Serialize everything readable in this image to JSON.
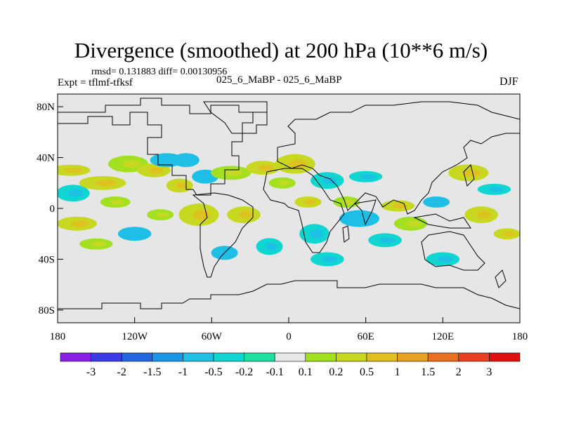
{
  "chart_data": {
    "type": "heatmap",
    "title": "Divergence (smoothed) at 200 hPa (10**6 m/s)",
    "stats_text": "rmsd= 0.131883 diff= 0.00130956",
    "experiment_label": "Expt = tflmf-tfksf",
    "case_label": "025_6_MaBP - 025_6_MaBP",
    "season": "DJF",
    "x_axis": {
      "range": [
        -180,
        180
      ],
      "ticks": [
        {
          "value": -180,
          "label": "180"
        },
        {
          "value": -120,
          "label": "120W"
        },
        {
          "value": -60,
          "label": "60W"
        },
        {
          "value": 0,
          "label": "0"
        },
        {
          "value": 60,
          "label": "60E"
        },
        {
          "value": 120,
          "label": "120E"
        },
        {
          "value": 180,
          "label": "180"
        }
      ]
    },
    "y_axis": {
      "range": [
        -90,
        90
      ],
      "ticks": [
        {
          "value": 80,
          "label": "80N"
        },
        {
          "value": 40,
          "label": "40N"
        },
        {
          "value": 0,
          "label": "0"
        },
        {
          "value": -40,
          "label": "40S"
        },
        {
          "value": -80,
          "label": "80S"
        }
      ]
    },
    "colorbar": {
      "levels": [
        "-3",
        "-2",
        "-1.5",
        "-1",
        "-0.5",
        "-0.2",
        "-0.1",
        "0.1",
        "0.2",
        "0.5",
        "1",
        "1.5",
        "2",
        "3"
      ],
      "colors": [
        "#8a20e6",
        "#3c3ce6",
        "#2466e0",
        "#1a96e6",
        "#1ebee6",
        "#10d6d2",
        "#20e0a0",
        "#e8e8e8",
        "#a2e020",
        "#c8d820",
        "#e0c020",
        "#e8a020",
        "#e87020",
        "#e84020",
        "#e01010"
      ]
    },
    "field_patches": [
      {
        "lon": -170,
        "lat": 30,
        "rx": 12,
        "ry": 4,
        "level": 9
      },
      {
        "lon": -168,
        "lat": 12,
        "rx": 10,
        "ry": 6,
        "level": 5
      },
      {
        "lon": -165,
        "lat": -12,
        "rx": 12,
        "ry": 5,
        "level": 9
      },
      {
        "lon": -150,
        "lat": -28,
        "rx": 10,
        "ry": 4,
        "level": 8
      },
      {
        "lon": -145,
        "lat": 20,
        "rx": 14,
        "ry": 5,
        "level": 9
      },
      {
        "lon": -135,
        "lat": 5,
        "rx": 9,
        "ry": 4,
        "level": 8
      },
      {
        "lon": -125,
        "lat": 35,
        "rx": 12,
        "ry": 6,
        "level": 8
      },
      {
        "lon": -120,
        "lat": -20,
        "rx": 10,
        "ry": 5,
        "level": 4
      },
      {
        "lon": -105,
        "lat": 30,
        "rx": 10,
        "ry": 5,
        "level": 9
      },
      {
        "lon": -100,
        "lat": -5,
        "rx": 8,
        "ry": 4,
        "level": 8
      },
      {
        "lon": -95,
        "lat": 38,
        "rx": 10,
        "ry": 5,
        "level": 4
      },
      {
        "lon": -85,
        "lat": 18,
        "rx": 8,
        "ry": 5,
        "level": 9
      },
      {
        "lon": -80,
        "lat": 38,
        "rx": 8,
        "ry": 5,
        "level": 4
      },
      {
        "lon": -70,
        "lat": -5,
        "rx": 12,
        "ry": 8,
        "level": 9
      },
      {
        "lon": -65,
        "lat": 25,
        "rx": 8,
        "ry": 5,
        "level": 4
      },
      {
        "lon": -50,
        "lat": -35,
        "rx": 8,
        "ry": 5,
        "level": 4
      },
      {
        "lon": -45,
        "lat": 28,
        "rx": 12,
        "ry": 5,
        "level": 8
      },
      {
        "lon": -35,
        "lat": -5,
        "rx": 10,
        "ry": 6,
        "level": 9
      },
      {
        "lon": -20,
        "lat": 32,
        "rx": 10,
        "ry": 5,
        "level": 9
      },
      {
        "lon": -15,
        "lat": -30,
        "rx": 8,
        "ry": 6,
        "level": 5
      },
      {
        "lon": -5,
        "lat": 20,
        "rx": 8,
        "ry": 4,
        "level": 8
      },
      {
        "lon": 5,
        "lat": 35,
        "rx": 12,
        "ry": 7,
        "level": 9
      },
      {
        "lon": 15,
        "lat": 5,
        "rx": 8,
        "ry": 4,
        "level": 9
      },
      {
        "lon": 20,
        "lat": -20,
        "rx": 9,
        "ry": 7,
        "level": 5
      },
      {
        "lon": 30,
        "lat": 22,
        "rx": 10,
        "ry": 6,
        "level": 5
      },
      {
        "lon": 30,
        "lat": -40,
        "rx": 10,
        "ry": 5,
        "level": 5
      },
      {
        "lon": 45,
        "lat": 5,
        "rx": 8,
        "ry": 4,
        "level": 8
      },
      {
        "lon": 55,
        "lat": -8,
        "rx": 12,
        "ry": 6,
        "level": 4
      },
      {
        "lon": 60,
        "lat": 25,
        "rx": 10,
        "ry": 4,
        "level": 5
      },
      {
        "lon": 75,
        "lat": -25,
        "rx": 10,
        "ry": 5,
        "level": 5
      },
      {
        "lon": 85,
        "lat": 2,
        "rx": 10,
        "ry": 4,
        "level": 9
      },
      {
        "lon": 95,
        "lat": -12,
        "rx": 10,
        "ry": 5,
        "level": 8
      },
      {
        "lon": 115,
        "lat": 5,
        "rx": 8,
        "ry": 4,
        "level": 4
      },
      {
        "lon": 120,
        "lat": -40,
        "rx": 10,
        "ry": 5,
        "level": 5
      },
      {
        "lon": 140,
        "lat": 28,
        "rx": 12,
        "ry": 6,
        "level": 9
      },
      {
        "lon": 150,
        "lat": -5,
        "rx": 10,
        "ry": 6,
        "level": 9
      },
      {
        "lon": 160,
        "lat": 15,
        "rx": 10,
        "ry": 4,
        "level": 5
      },
      {
        "lon": 170,
        "lat": -20,
        "rx": 8,
        "ry": 4,
        "level": 9
      }
    ]
  }
}
